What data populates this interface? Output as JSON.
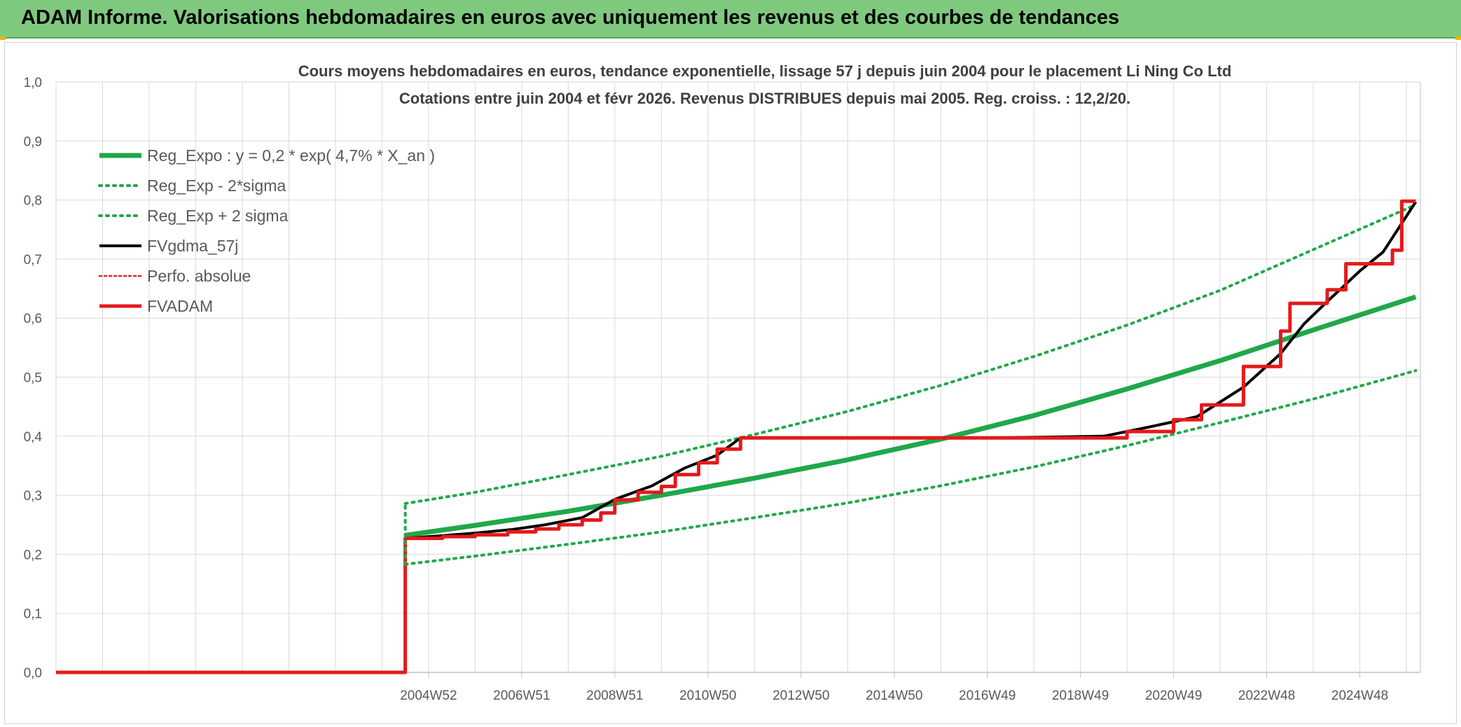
{
  "header": {
    "title": "ADAM Informe. Valorisations hebdomadaires en euros avec uniquement les revenus et des courbes de tendances"
  },
  "colors": {
    "header_bg": "#7fc97f",
    "reg_expo": "#1fa84a",
    "fvgdma": "#000000",
    "perfo": "#e02020",
    "fvadam": "#e41a1c",
    "grid": "#d9d9d9"
  },
  "chart_data": {
    "type": "line",
    "title": "Cours moyens hebdomadaires en euros, tendance exponentielle, lissage 57 j depuis juin 2004 pour le placement Li Ning Co Ltd",
    "subtitle": "Cotations entre juin 2004 et févr 2026. Revenus DISTRIBUES depuis mai 2005. Reg. croiss. : 12,2/20.",
    "xlabel": "",
    "ylabel": "",
    "ylim": [
      0,
      1.0
    ],
    "y_ticks": [
      "0,0",
      "0,1",
      "0,2",
      "0,3",
      "0,4",
      "0,5",
      "0,6",
      "0,7",
      "0,8",
      "0,9",
      "1,0"
    ],
    "xlim": [
      1997.0,
      2026.3
    ],
    "x_tick_positions": [
      2005.0,
      2007.0,
      2009.0,
      2011.0,
      2013.0,
      2015.0,
      2017.0,
      2019.0,
      2021.0,
      2023.0,
      2025.0
    ],
    "x_tick_labels": [
      "2004W52",
      "2006W51",
      "2008W51",
      "2010W50",
      "2012W50",
      "2014W50",
      "2016W49",
      "2018W49",
      "2020W49",
      "2022W48",
      "2024W48"
    ],
    "grid": true,
    "legend_position": "top-left",
    "series": [
      {
        "name": "Reg_Expo : y = 0,2 * exp( 4,7% *  X_an )",
        "style": "solid-thick",
        "x": [
          2004.5,
          2006.0,
          2008.0,
          2010.0,
          2012.0,
          2014.0,
          2016.0,
          2018.0,
          2020.0,
          2022.0,
          2024.0,
          2026.2
        ],
        "y": [
          0.232,
          0.249,
          0.273,
          0.3,
          0.329,
          0.36,
          0.395,
          0.435,
          0.48,
          0.528,
          0.58,
          0.636
        ]
      },
      {
        "name": "Reg_Exp - 2*sigma",
        "style": "dotted",
        "x": [
          2004.5,
          2006.0,
          2008.0,
          2010.0,
          2012.0,
          2014.0,
          2016.0,
          2018.0,
          2020.0,
          2022.0,
          2024.0,
          2026.2
        ],
        "y": [
          0.183,
          0.197,
          0.217,
          0.238,
          0.262,
          0.287,
          0.316,
          0.348,
          0.384,
          0.423,
          0.463,
          0.511
        ]
      },
      {
        "name": "Reg_Exp + 2 sigma",
        "style": "dotted",
        "x": [
          2004.5,
          2006.0,
          2008.0,
          2010.0,
          2012.0,
          2014.0,
          2016.0,
          2018.0,
          2020.0,
          2022.0,
          2024.0,
          2026.2
        ],
        "y": [
          0.286,
          0.305,
          0.335,
          0.366,
          0.403,
          0.442,
          0.486,
          0.535,
          0.588,
          0.647,
          0.716,
          0.792
        ]
      },
      {
        "name": "FVgdma_57j",
        "style": "solid-thin",
        "x": [
          2004.5,
          2005.2,
          2006.0,
          2006.8,
          2007.5,
          2008.3,
          2009.0,
          2009.8,
          2010.5,
          2011.2,
          2011.7,
          2014.0,
          2017.0,
          2019.5,
          2020.5,
          2021.5,
          2022.5,
          2023.3,
          2023.8,
          2024.3,
          2025.0,
          2025.5,
          2026.2
        ],
        "y": [
          0.227,
          0.231,
          0.236,
          0.242,
          0.25,
          0.262,
          0.293,
          0.316,
          0.346,
          0.368,
          0.397,
          0.397,
          0.397,
          0.4,
          0.416,
          0.433,
          0.483,
          0.54,
          0.59,
          0.628,
          0.68,
          0.712,
          0.797
        ]
      },
      {
        "name": "Perfo. absolue",
        "style": "dotted-thin",
        "x": [],
        "y": []
      },
      {
        "name": "FVADAM",
        "style": "step-thick",
        "x": [
          1997.0,
          2004.5,
          2004.5,
          2005.3,
          2006.0,
          2006.7,
          2007.3,
          2007.8,
          2008.3,
          2008.7,
          2009.0,
          2009.5,
          2010.0,
          2010.3,
          2010.8,
          2011.2,
          2011.7,
          2014.0,
          2017.0,
          2019.5,
          2020.0,
          2021.0,
          2021.6,
          2022.5,
          2023.3,
          2023.5,
          2024.3,
          2024.7,
          2025.7,
          2025.9,
          2026.2
        ],
        "y": [
          0.0,
          0.0,
          0.227,
          0.23,
          0.233,
          0.238,
          0.243,
          0.25,
          0.258,
          0.27,
          0.292,
          0.305,
          0.315,
          0.335,
          0.355,
          0.378,
          0.397,
          0.397,
          0.397,
          0.397,
          0.408,
          0.428,
          0.453,
          0.518,
          0.578,
          0.625,
          0.648,
          0.692,
          0.715,
          0.798,
          0.798
        ]
      }
    ]
  }
}
